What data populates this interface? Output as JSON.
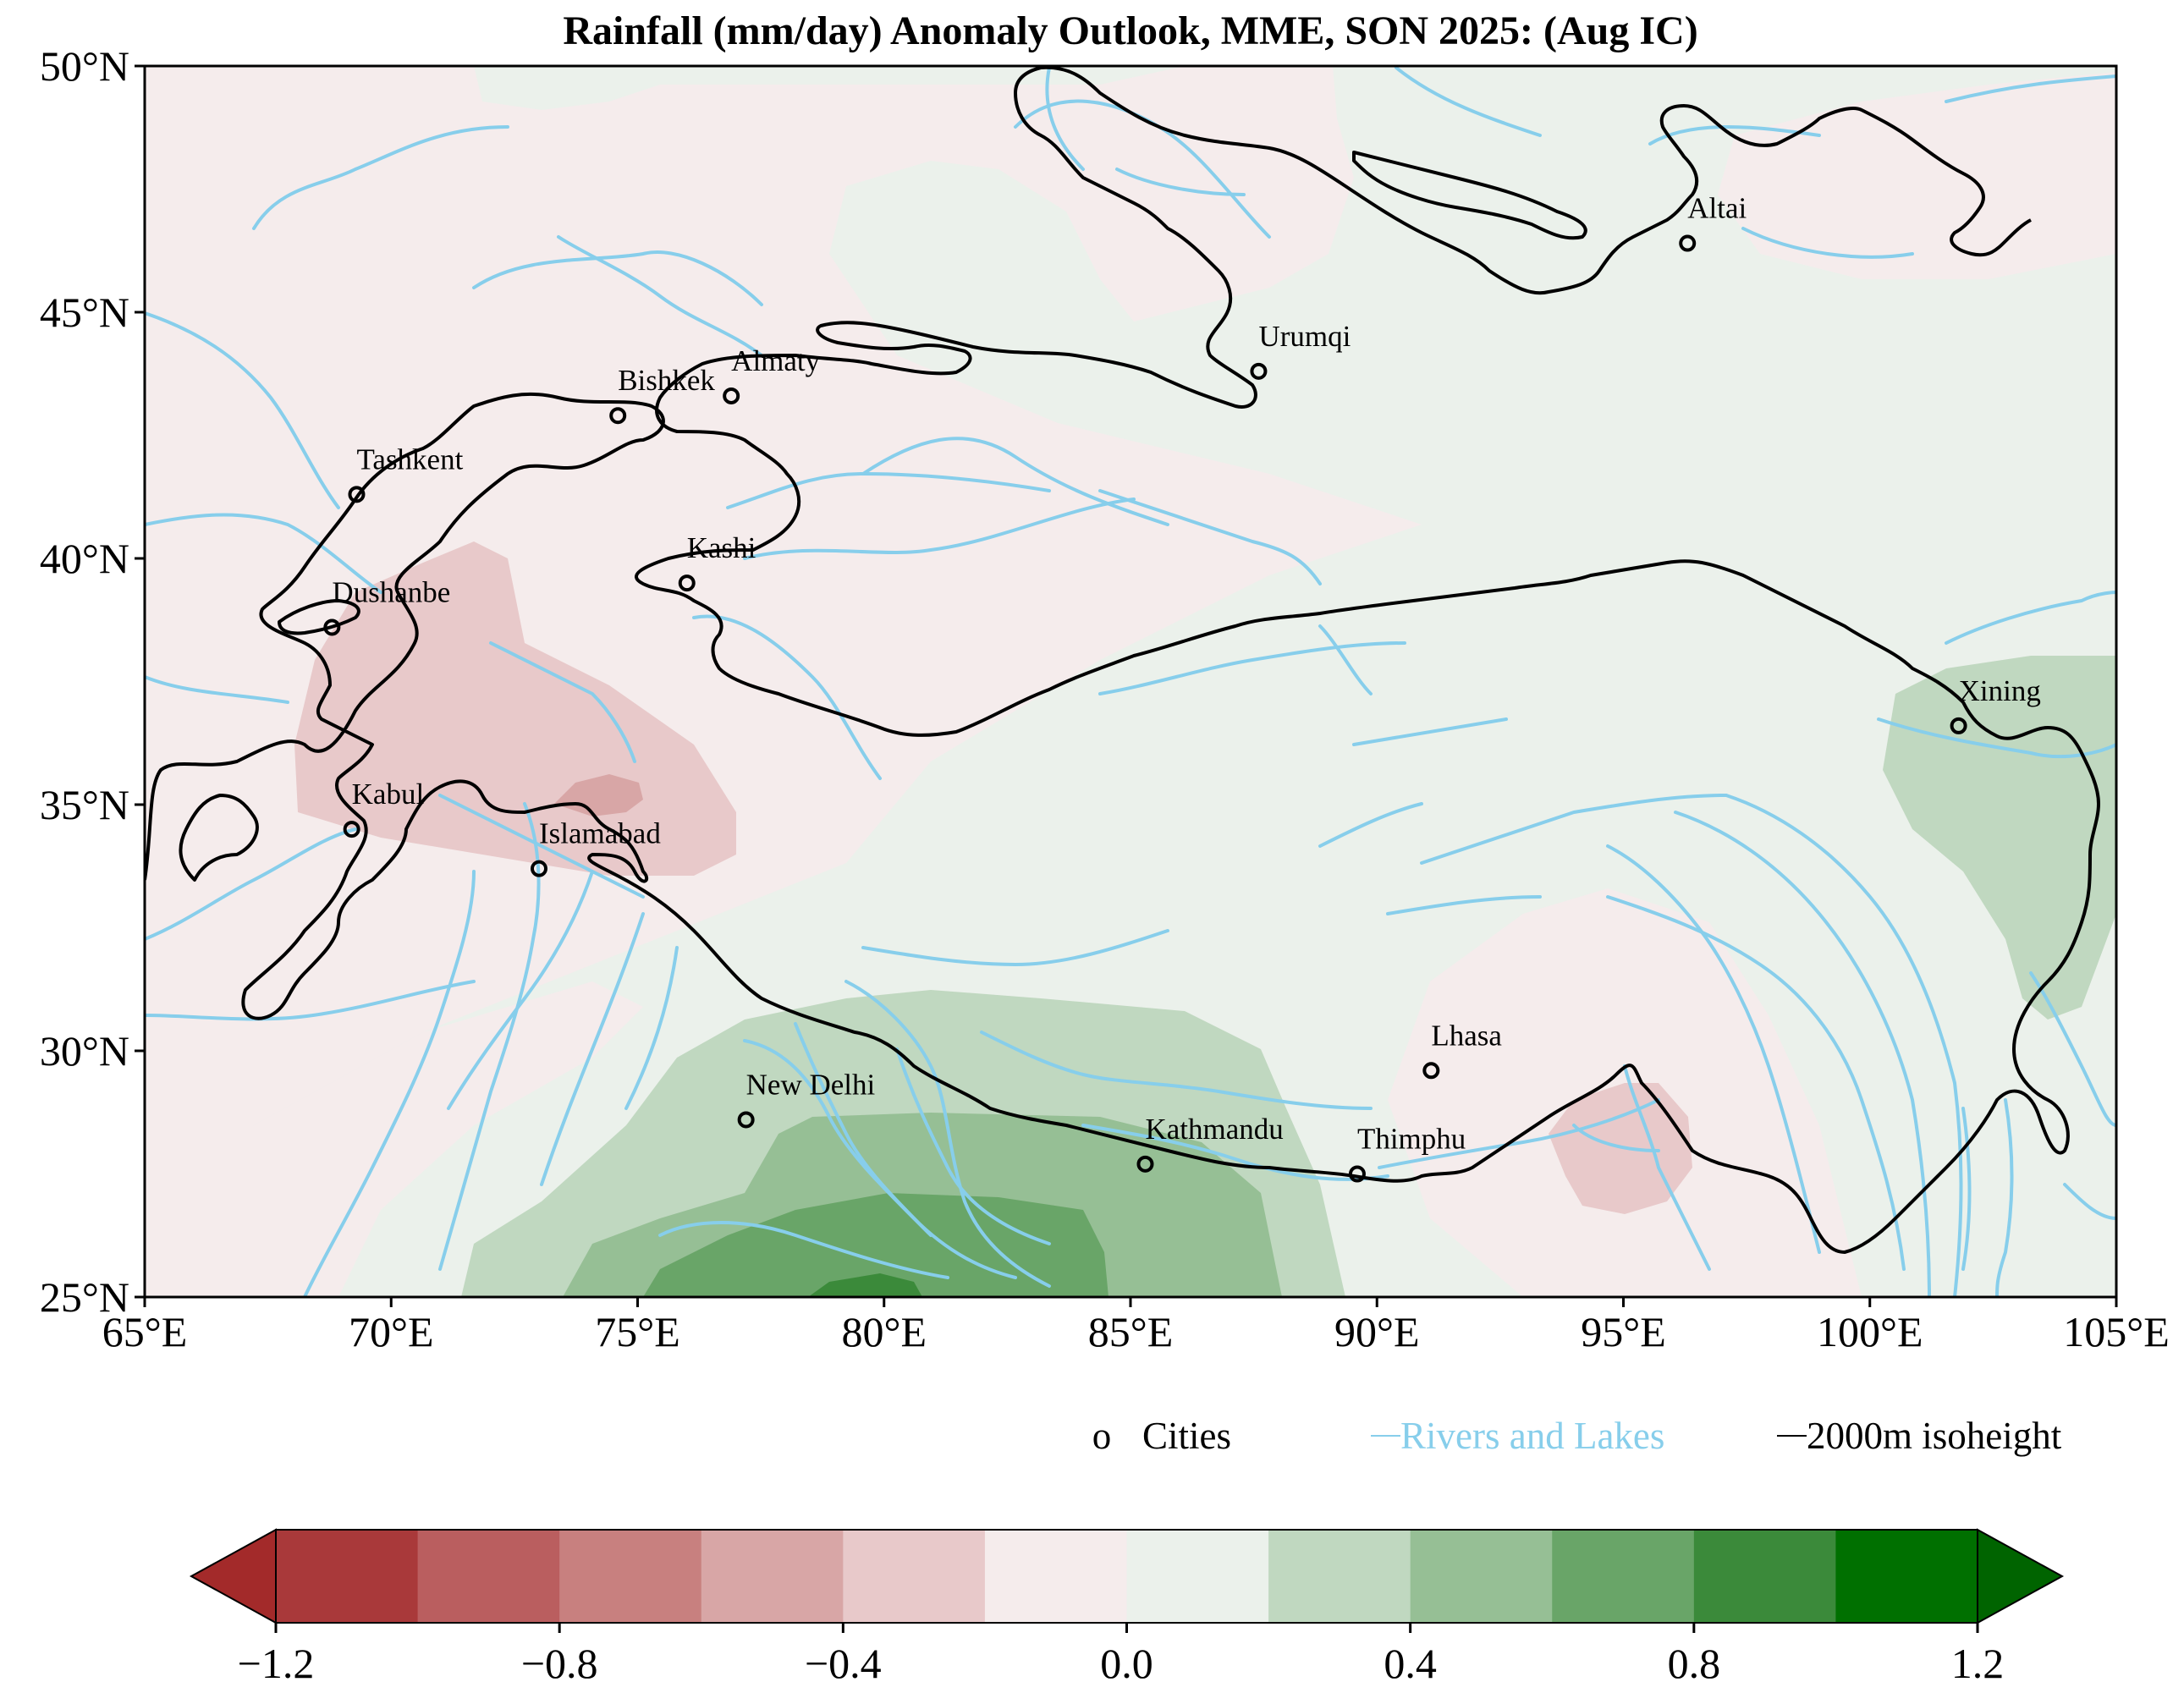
{
  "title": "Rainfall (mm/day) Anomaly Outlook, MME, SON  2025:  (Aug IC)",
  "map_extent": {
    "lon_min": 65,
    "lon_max": 105,
    "lat_min": 25,
    "lat_max": 50
  },
  "axes": {
    "x_ticks": [
      {
        "lon": 65,
        "label": "65°E"
      },
      {
        "lon": 70,
        "label": "70°E"
      },
      {
        "lon": 75,
        "label": "75°E"
      },
      {
        "lon": 80,
        "label": "80°E"
      },
      {
        "lon": 85,
        "label": "85°E"
      },
      {
        "lon": 90,
        "label": "90°E"
      },
      {
        "lon": 95,
        "label": "95°E"
      },
      {
        "lon": 100,
        "label": "100°E"
      },
      {
        "lon": 105,
        "label": "105°E"
      }
    ],
    "y_ticks": [
      {
        "lat": 25,
        "label": "25°N"
      },
      {
        "lat": 30,
        "label": "30°N"
      },
      {
        "lat": 35,
        "label": "35°N"
      },
      {
        "lat": 40,
        "label": "40°N"
      },
      {
        "lat": 45,
        "label": "45°N"
      },
      {
        "lat": 50,
        "label": "50°N"
      }
    ]
  },
  "cities": [
    {
      "name": "Altai",
      "lon": 96.3,
      "lat": 46.4
    },
    {
      "name": "Urumqi",
      "lon": 87.6,
      "lat": 43.8
    },
    {
      "name": "Almaty",
      "lon": 76.9,
      "lat": 43.3
    },
    {
      "name": "Bishkek",
      "lon": 74.6,
      "lat": 42.9
    },
    {
      "name": "Tashkent",
      "lon": 69.3,
      "lat": 41.3
    },
    {
      "name": "Kashi",
      "lon": 76.0,
      "lat": 39.5
    },
    {
      "name": "Dushanbe",
      "lon": 68.8,
      "lat": 38.6
    },
    {
      "name": "Xining",
      "lon": 101.8,
      "lat": 36.6
    },
    {
      "name": "Kabul",
      "lon": 69.2,
      "lat": 34.5
    },
    {
      "name": "Islamabad",
      "lon": 73.0,
      "lat": 33.7
    },
    {
      "name": "Lhasa",
      "lon": 91.1,
      "lat": 29.6
    },
    {
      "name": "New Delhi",
      "lon": 77.2,
      "lat": 28.6
    },
    {
      "name": "Kathmandu",
      "lon": 85.3,
      "lat": 27.7
    },
    {
      "name": "Thimphu",
      "lon": 89.6,
      "lat": 27.5
    }
  ],
  "legend": {
    "cities_marker": "o",
    "cities_label": "Cities",
    "rivers_label": "Rivers and Lakes",
    "isoheight_label": "2000m isoheight"
  },
  "colors": {
    "rivers": "#87ceeb",
    "isoheight": "#000000",
    "background_low_positive": "#ebf1eb",
    "background_low_negative": "#f5ecec"
  },
  "colorbar": {
    "levels": [
      -1.2,
      -1.0,
      -0.8,
      -0.6,
      -0.4,
      -0.2,
      0.0,
      0.2,
      0.4,
      0.6,
      0.8,
      1.0,
      1.2
    ],
    "colors": [
      "#a9393a",
      "#ba5e5f",
      "#c8807f",
      "#d8a6a6",
      "#e8c9ca",
      "#f5ecec",
      "#ebf1eb",
      "#c0d8c0",
      "#96bf95",
      "#69a568",
      "#3b8a3a",
      "#007000"
    ],
    "under_color": "#a32a2a",
    "over_color": "#006400",
    "tick_labels": [
      {
        "value": -1.2,
        "label": "−1.2"
      },
      {
        "value": -0.8,
        "label": "−0.8"
      },
      {
        "value": -0.4,
        "label": "−0.4"
      },
      {
        "value": 0.0,
        "label": "0.0"
      },
      {
        "value": 0.4,
        "label": "0.4"
      },
      {
        "value": 0.8,
        "label": "0.8"
      },
      {
        "value": 1.2,
        "label": "1.2"
      }
    ]
  }
}
